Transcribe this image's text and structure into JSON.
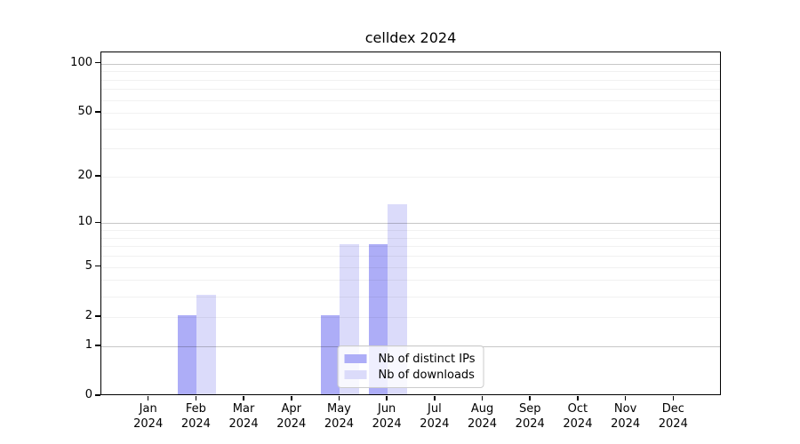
{
  "chart_data": {
    "type": "bar",
    "title": "celldex 2024",
    "categories": [
      "Jan",
      "Feb",
      "Mar",
      "Apr",
      "May",
      "Jun",
      "Jul",
      "Aug",
      "Sep",
      "Oct",
      "Nov",
      "Dec"
    ],
    "x_year_label": "2024",
    "series": [
      {
        "name": "Nb of distinct IPs",
        "color": "#adadf7",
        "values": [
          0,
          2,
          0,
          0,
          2,
          7,
          0,
          0,
          0,
          0,
          0,
          0
        ]
      },
      {
        "name": "Nb of downloads",
        "color": "#dbdbfa",
        "values": [
          0,
          3,
          0,
          0,
          7,
          13,
          0,
          0,
          0,
          0,
          0,
          0
        ]
      }
    ],
    "xlabel": "",
    "ylabel": "",
    "y_scale": "log10(1+x)",
    "ylim": [
      0,
      117
    ],
    "y_ticks": [
      0,
      1,
      2,
      5,
      10,
      20,
      50,
      100
    ],
    "y_major_gridlines": [
      1,
      10,
      100
    ],
    "y_minor_gridlines": [
      2,
      3,
      4,
      5,
      6,
      7,
      8,
      9,
      20,
      30,
      40,
      50,
      60,
      70,
      80,
      90
    ],
    "grid": true,
    "legend_position": "lower center",
    "colors": {
      "axis": "#000000",
      "major_grid": "rgba(0,0,0,0.22)",
      "minor_grid": "rgba(0,0,0,0.055)",
      "legend_border": "#cccccc",
      "legend_background": "rgba(255,255,255,0.8)",
      "text": "#000000"
    }
  }
}
